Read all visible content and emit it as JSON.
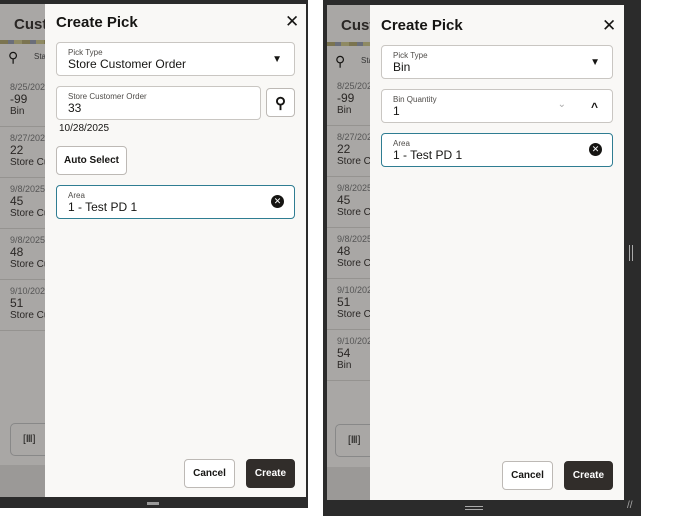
{
  "background": {
    "title": "Cust",
    "search_label": "Sta",
    "scan_icon": "barcode-scan-icon",
    "rows_left": [
      {
        "date": "8/25/202",
        "num": "-99",
        "type": "Bin"
      },
      {
        "date": "8/27/202",
        "num": "22",
        "type": "Store Cu"
      },
      {
        "date": "9/8/2025",
        "num": "45",
        "type": "Store Cu"
      },
      {
        "date": "9/8/2025",
        "num": "48",
        "type": "Store Cu"
      },
      {
        "date": "9/10/202",
        "num": "51",
        "type": "Store Cu"
      }
    ],
    "rows_right": [
      {
        "date": "8/25/202",
        "num": "-99",
        "type": "Bin"
      },
      {
        "date": "8/27/202",
        "num": "22",
        "type": "Store Cu"
      },
      {
        "date": "9/8/2025",
        "num": "45",
        "type": "Store Cu"
      },
      {
        "date": "9/8/2025",
        "num": "48",
        "type": "Store Cu"
      },
      {
        "date": "9/10/202",
        "num": "51",
        "type": "Store Cu"
      },
      {
        "date": "9/10/202",
        "num": "54",
        "type": "Bin"
      }
    ]
  },
  "left": {
    "title": "Create Pick",
    "pick_type_label": "Pick Type",
    "pick_type_value": "Store Customer Order",
    "order_label": "Store Customer Order",
    "order_value": "33",
    "order_date": "10/28/2025",
    "auto_select": "Auto Select",
    "area_label": "Area",
    "area_value": "1 - Test PD 1",
    "cancel": "Cancel",
    "create": "Create"
  },
  "right": {
    "title": "Create Pick",
    "pick_type_label": "Pick Type",
    "pick_type_value": "Bin",
    "bin_qty_label": "Bin Quantity",
    "bin_qty_value": "1",
    "area_label": "Area",
    "area_value": "1 - Test PD 1",
    "cancel": "Cancel",
    "create": "Create"
  },
  "colors": {
    "accent_border": "#2f7d92",
    "primary_button": "#312d2a"
  }
}
